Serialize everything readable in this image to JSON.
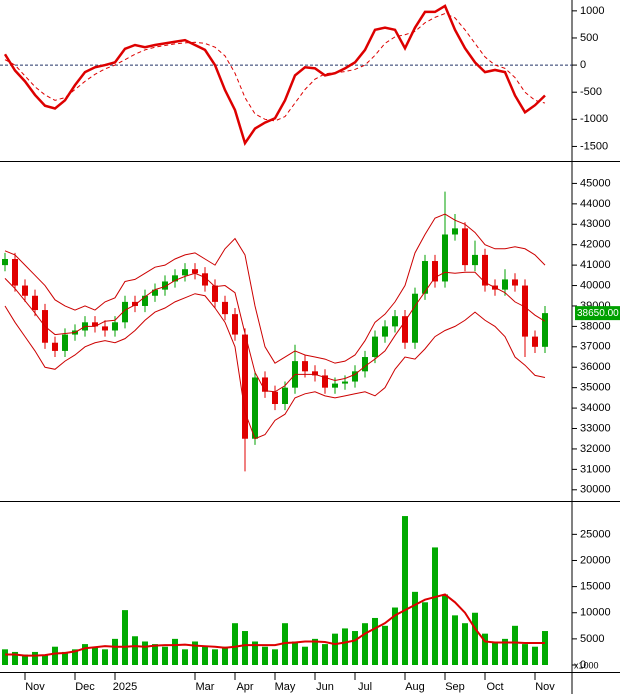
{
  "chart_data": [
    {
      "type": "line",
      "series": [
        {
          "color": "#dd0000",
          "values": [
            200,
            -100,
            -300,
            -550,
            -750,
            -800,
            -650,
            -370,
            -130,
            -40,
            0,
            50,
            300,
            370,
            330,
            370,
            400,
            430,
            460,
            370,
            280,
            0,
            -460,
            -830,
            -1440,
            -1170,
            -1060,
            -980,
            -650,
            -190,
            -40,
            -60,
            -190,
            -150,
            -60,
            50,
            280,
            650,
            690,
            650,
            310,
            690,
            980,
            980,
            1090,
            650,
            310,
            50,
            -130,
            -90,
            -130,
            -560,
            -870,
            -740,
            -560
          ]
        },
        {
          "color": "#dd0000",
          "dash": true,
          "values": [
            100,
            0,
            -200,
            -400,
            -550,
            -650,
            -600,
            -450,
            -300,
            -170,
            -70,
            0,
            100,
            200,
            280,
            330,
            360,
            390,
            410,
            420,
            400,
            330,
            170,
            -150,
            -600,
            -900,
            -1000,
            -1030,
            -950,
            -700,
            -450,
            -260,
            -160,
            -140,
            -120,
            -80,
            0,
            180,
            400,
            520,
            560,
            620,
            780,
            880,
            950,
            870,
            650,
            400,
            150,
            0,
            -60,
            -230,
            -500,
            -650,
            -700
          ]
        }
      ],
      "ylim": [
        -1750,
        1200
      ],
      "yticks": [
        1000,
        500,
        0,
        -500,
        -1000,
        -1500
      ],
      "zero_line": 0
    },
    {
      "type": "candlestick",
      "open": [
        41000,
        41300,
        40000,
        39500,
        38800,
        37200,
        36800,
        37600,
        37800,
        38200,
        38000,
        37800,
        38200,
        39200,
        39000,
        39500,
        39800,
        40200,
        40500,
        40800,
        40600,
        40000,
        39200,
        38600,
        37600,
        32500,
        35500,
        34800,
        34200,
        35000,
        36300,
        35800,
        35600,
        35000,
        35200,
        35300,
        35800,
        36500,
        37500,
        38000,
        38500,
        37200,
        39600,
        41200,
        40200,
        42500,
        42800,
        41000,
        41500,
        40000,
        39800,
        40300,
        40000,
        37500,
        37000
      ],
      "high": [
        41600,
        41600,
        40300,
        39800,
        39100,
        37500,
        37900,
        38100,
        38500,
        38500,
        38300,
        38500,
        39500,
        39500,
        39800,
        40100,
        40500,
        40800,
        41100,
        41100,
        40900,
        40300,
        39500,
        38900,
        37900,
        35800,
        35800,
        35100,
        35300,
        37100,
        36600,
        36100,
        35900,
        35500,
        35600,
        36100,
        36800,
        37800,
        38300,
        38800,
        38800,
        39900,
        41500,
        41500,
        44600,
        43500,
        43100,
        42200,
        41800,
        40300,
        40800,
        40600,
        40300,
        37800,
        39000
      ],
      "low": [
        40700,
        39700,
        39200,
        38500,
        36900,
        36500,
        36500,
        37300,
        37500,
        37700,
        37500,
        37500,
        37900,
        38700,
        38700,
        39200,
        39500,
        39900,
        40200,
        40300,
        39700,
        38900,
        38300,
        37300,
        30900,
        32200,
        34500,
        33900,
        33900,
        34700,
        35500,
        35300,
        34700,
        34700,
        34900,
        35000,
        35500,
        36200,
        37200,
        37700,
        36900,
        36900,
        39300,
        39900,
        39900,
        42200,
        40700,
        40700,
        39700,
        39500,
        39500,
        39700,
        36500,
        36700,
        36700
      ],
      "close": [
        41300,
        40000,
        39500,
        38800,
        37200,
        36800,
        37600,
        37800,
        38200,
        38000,
        37800,
        38200,
        39200,
        39000,
        39500,
        39800,
        40200,
        40500,
        40800,
        40600,
        40000,
        39200,
        38600,
        37600,
        32500,
        35500,
        34800,
        34200,
        35000,
        36300,
        35800,
        35600,
        35000,
        35200,
        35300,
        35800,
        36500,
        37500,
        38000,
        38500,
        37200,
        39600,
        41200,
        40200,
        42500,
        42800,
        41000,
        41500,
        40000,
        39800,
        40300,
        40000,
        37500,
        37000,
        38650
      ],
      "up_color": "#00a000",
      "down_color": "#e00000",
      "bands": [
        {
          "color": "#cc0000",
          "values": [
            41700,
            41500,
            41000,
            40500,
            40000,
            39300,
            39000,
            38800,
            39000,
            38800,
            39200,
            39400,
            40200,
            40300,
            40600,
            40900,
            41000,
            41300,
            41500,
            41600,
            41300,
            41000,
            41800,
            42300,
            41500,
            39000,
            37000,
            36200,
            36500,
            36800,
            36600,
            36500,
            36400,
            36200,
            36300,
            36600,
            37300,
            38200,
            38600,
            39200,
            40000,
            41600,
            42500,
            43300,
            43500,
            43200,
            43000,
            42600,
            42000,
            41800,
            41800,
            41900,
            41800,
            41500,
            41000
          ]
        },
        {
          "color": "#cc0000",
          "values": [
            40350,
            39850,
            39250,
            38650,
            38000,
            37600,
            37650,
            37700,
            38000,
            38000,
            38250,
            38300,
            38800,
            39050,
            39450,
            39800,
            39950,
            40250,
            40450,
            40600,
            40400,
            39950,
            40000,
            39650,
            37650,
            35750,
            34850,
            34800,
            35100,
            35650,
            35650,
            35650,
            35500,
            35350,
            35450,
            35650,
            36050,
            36400,
            36800,
            37550,
            38250,
            39000,
            39700,
            40400,
            40650,
            40600,
            40650,
            40650,
            40150,
            39900,
            39650,
            39200,
            38950,
            38550,
            38250
          ]
        },
        {
          "color": "#cc0000",
          "values": [
            39000,
            38200,
            37500,
            36800,
            36000,
            35900,
            36300,
            36600,
            37000,
            37200,
            37300,
            37200,
            37400,
            37800,
            38300,
            38700,
            38900,
            39200,
            39400,
            39600,
            39500,
            38900,
            38200,
            37000,
            33800,
            32500,
            32700,
            33400,
            33700,
            34500,
            34700,
            34800,
            34600,
            34500,
            34600,
            34700,
            34800,
            34600,
            35000,
            35900,
            36500,
            36400,
            36900,
            37500,
            37800,
            38000,
            38300,
            38700,
            38300,
            38000,
            37500,
            36500,
            36100,
            35600,
            35500
          ]
        }
      ],
      "ylim": [
        29500,
        46000
      ],
      "yticks": [
        30000,
        31000,
        32000,
        33000,
        34000,
        35000,
        36000,
        37000,
        38000,
        39000,
        40000,
        41000,
        42000,
        43000,
        44000,
        45000
      ],
      "last_label": "38650.00",
      "last_color": "#00a000"
    },
    {
      "type": "bar",
      "categories": [
        null,
        null,
        null,
        "Nov",
        null,
        null,
        null,
        null,
        "Dec",
        null,
        null,
        null,
        "2025",
        null,
        null,
        null,
        null,
        null,
        null,
        null,
        "Mar",
        null,
        null,
        null,
        "Apr",
        null,
        null,
        null,
        "May",
        null,
        null,
        null,
        "Jun",
        null,
        null,
        null,
        "Jul",
        null,
        null,
        null,
        null,
        "Aug",
        null,
        null,
        null,
        "Sep",
        null,
        null,
        null,
        "Oct",
        null,
        null,
        null,
        null,
        "Nov"
      ],
      "values": [
        3000,
        2500,
        2000,
        2500,
        2000,
        3500,
        2500,
        3000,
        4000,
        3500,
        3000,
        5000,
        10500,
        5500,
        4500,
        4000,
        3500,
        5000,
        3000,
        4500,
        3500,
        3000,
        3500,
        8000,
        6500,
        4500,
        3500,
        3000,
        8000,
        4500,
        3500,
        5000,
        4000,
        6000,
        7000,
        6500,
        8000,
        9000,
        7500,
        11000,
        28500,
        14000,
        12000,
        22500,
        13500,
        9500,
        8000,
        10000,
        6000,
        4500,
        5000,
        7500,
        4000,
        3500,
        6500
      ],
      "color": "#00aa00",
      "series": [
        {
          "color": "#dd0000",
          "values": [
            2000,
            2000,
            1800,
            1800,
            1900,
            2200,
            2300,
            2600,
            3200,
            3400,
            3600,
            3500,
            3500,
            3600,
            3500,
            3700,
            3800,
            3800,
            3900,
            3700,
            3600,
            3500,
            3300,
            3500,
            3800,
            3800,
            3800,
            3800,
            4200,
            4300,
            4500,
            4500,
            4400,
            4000,
            4300,
            4700,
            6000,
            7000,
            8000,
            9500,
            10500,
            11500,
            12500,
            13000,
            13500,
            12000,
            10000,
            7000,
            4500,
            4300,
            4300,
            4300,
            4200,
            4200,
            4200
          ]
        }
      ],
      "ylim": [
        0,
        31000
      ],
      "yticks": [
        0,
        5000,
        10000,
        15000,
        20000,
        25000
      ],
      "unit_label": "x1000"
    }
  ]
}
